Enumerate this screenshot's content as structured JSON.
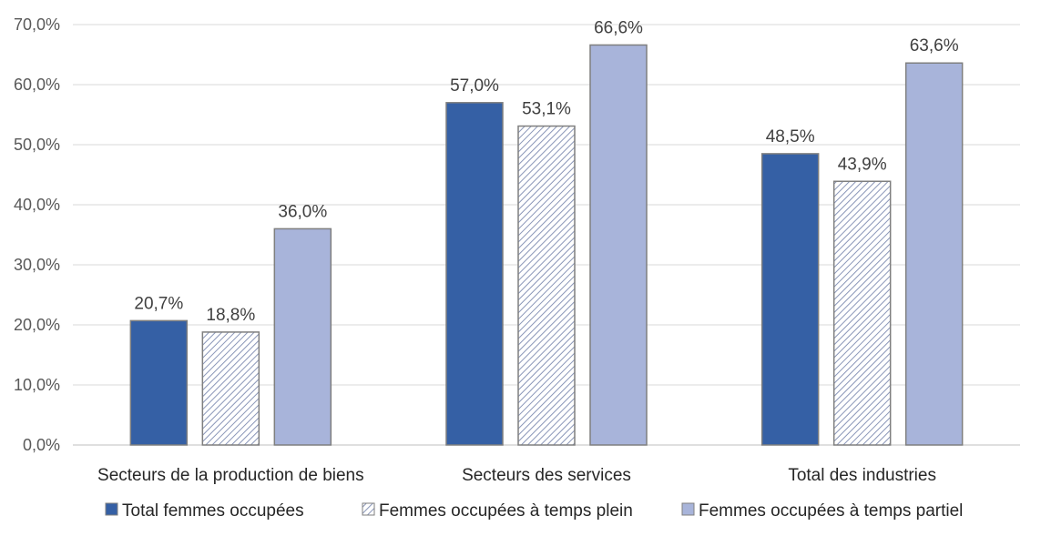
{
  "chart_data": {
    "type": "bar",
    "title": "",
    "xlabel": "",
    "ylabel": "",
    "ylim": [
      0,
      70
    ],
    "yticks": [
      "0,0%",
      "10,0%",
      "20,0%",
      "30,0%",
      "40,0%",
      "50,0%",
      "60,0%",
      "70,0%"
    ],
    "categories": [
      "Secteurs de la production de biens",
      "Secteurs des services",
      "Total des industries"
    ],
    "series": [
      {
        "name": "Total femmes occupées",
        "values": [
          20.7,
          57.0,
          48.5
        ],
        "labels": [
          "20,7%",
          "57,0%",
          "48,5%"
        ],
        "color": "#3560A5",
        "pattern": "solid"
      },
      {
        "name": "Femmes occupées à temps plein",
        "values": [
          18.8,
          53.1,
          43.9
        ],
        "labels": [
          "18,8%",
          "53,1%",
          "43,9%"
        ],
        "color": "#8A96B8",
        "pattern": "hatch"
      },
      {
        "name": "Femmes occupées à temps partiel",
        "values": [
          36.0,
          66.6,
          63.6
        ],
        "labels": [
          "36,0%",
          "66,6%",
          "63,6%"
        ],
        "color": "#A8B4DA",
        "pattern": "solid"
      }
    ],
    "grid": true,
    "legend": "bottom"
  }
}
